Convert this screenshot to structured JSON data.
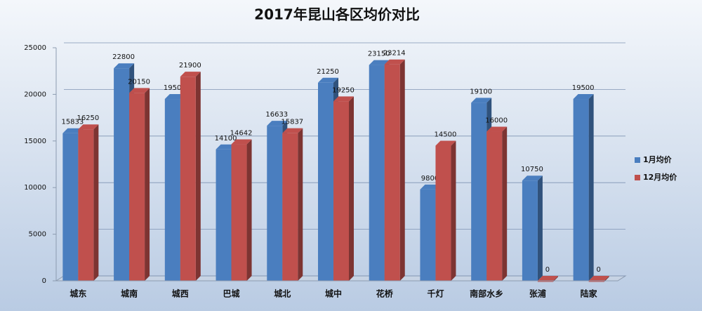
{
  "chart_data": {
    "type": "bar",
    "title": "2017年昆山各区均价对比",
    "categories": [
      "城东",
      "城南",
      "城西",
      "巴城",
      "城北",
      "城中",
      "花桥",
      "千灯",
      "南部水乡",
      "张浦",
      "陆家"
    ],
    "series": [
      {
        "name": "1月均价",
        "color": "#4a7ebf",
        "values": [
          15833,
          22800,
          19500,
          14100,
          16633,
          21250,
          23150,
          9800,
          19100,
          10750,
          19500
        ]
      },
      {
        "name": "12月均价",
        "color": "#c0504d",
        "values": [
          16250,
          20150,
          21900,
          14642,
          15837,
          19250,
          23214,
          14500,
          16000,
          0,
          0
        ]
      }
    ],
    "ylim": [
      0,
      25000
    ],
    "yticks": [
      0,
      5000,
      10000,
      15000,
      20000,
      25000
    ],
    "grid": true,
    "legend": "right"
  }
}
